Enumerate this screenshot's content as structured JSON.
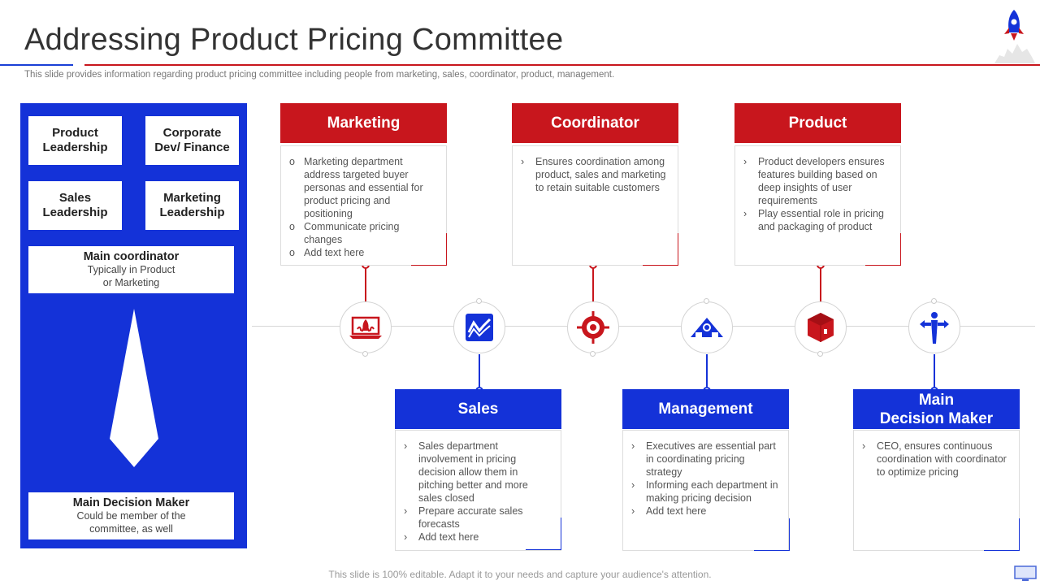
{
  "header": {
    "title": "Addressing Product Pricing Committee",
    "subtitle": "This slide provides information regarding product pricing committee including people from marketing, sales, coordinator, product, management."
  },
  "left_panel": {
    "boxes": [
      "Product\nLeadership",
      "Corporate\nDev/ Finance",
      "Sales\nLeadership",
      "Marketing\nLeadership"
    ],
    "coordinator": {
      "title": "Main coordinator",
      "text": "Typically in Product\nor Marketing"
    },
    "decision_maker": {
      "title": "Main Decision Maker",
      "text": "Could be member of the\ncommittee, as well"
    }
  },
  "cards_top": [
    {
      "title": "Marketing",
      "bullet": "o",
      "items": [
        "Marketing department address targeted buyer personas and essential for product pricing and positioning",
        "Communicate pricing changes",
        "Add text here"
      ]
    },
    {
      "title": "Coordinator",
      "bullet": "›",
      "items": [
        "Ensures coordination among product, sales and marketing to retain suitable customers"
      ]
    },
    {
      "title": "Product",
      "bullet": "›",
      "items": [
        "Product developers ensures features building based on deep insights of user requirements",
        "Play essential role in pricing and packaging of product"
      ]
    }
  ],
  "cards_bottom": [
    {
      "title": "Sales",
      "bullet": "›",
      "items": [
        "Sales department involvement  in pricing decision allow them in pitching better and more sales closed",
        "Prepare accurate sales forecasts",
        "Add text here"
      ]
    },
    {
      "title": "Management",
      "bullet": "›",
      "items": [
        "Executives are essential part in coordinating pricing strategy",
        "Informing  each department in making pricing decision",
        "Add text here"
      ]
    },
    {
      "title": "Main\nDecision Maker",
      "bullet": "›",
      "items": [
        "CEO, ensures continuous coordination with coordinator to optimize pricing"
      ]
    }
  ],
  "icons": [
    "rocket-laptop-icon",
    "line-chart-icon",
    "target-icon",
    "teamwork-icon",
    "package-icon",
    "person-arrows-icon"
  ],
  "colors": {
    "red": "#c8161d",
    "blue": "#1432d8"
  },
  "footer": {
    "text": "This slide is 100% editable. Adapt it to your needs and capture your audience's attention."
  }
}
